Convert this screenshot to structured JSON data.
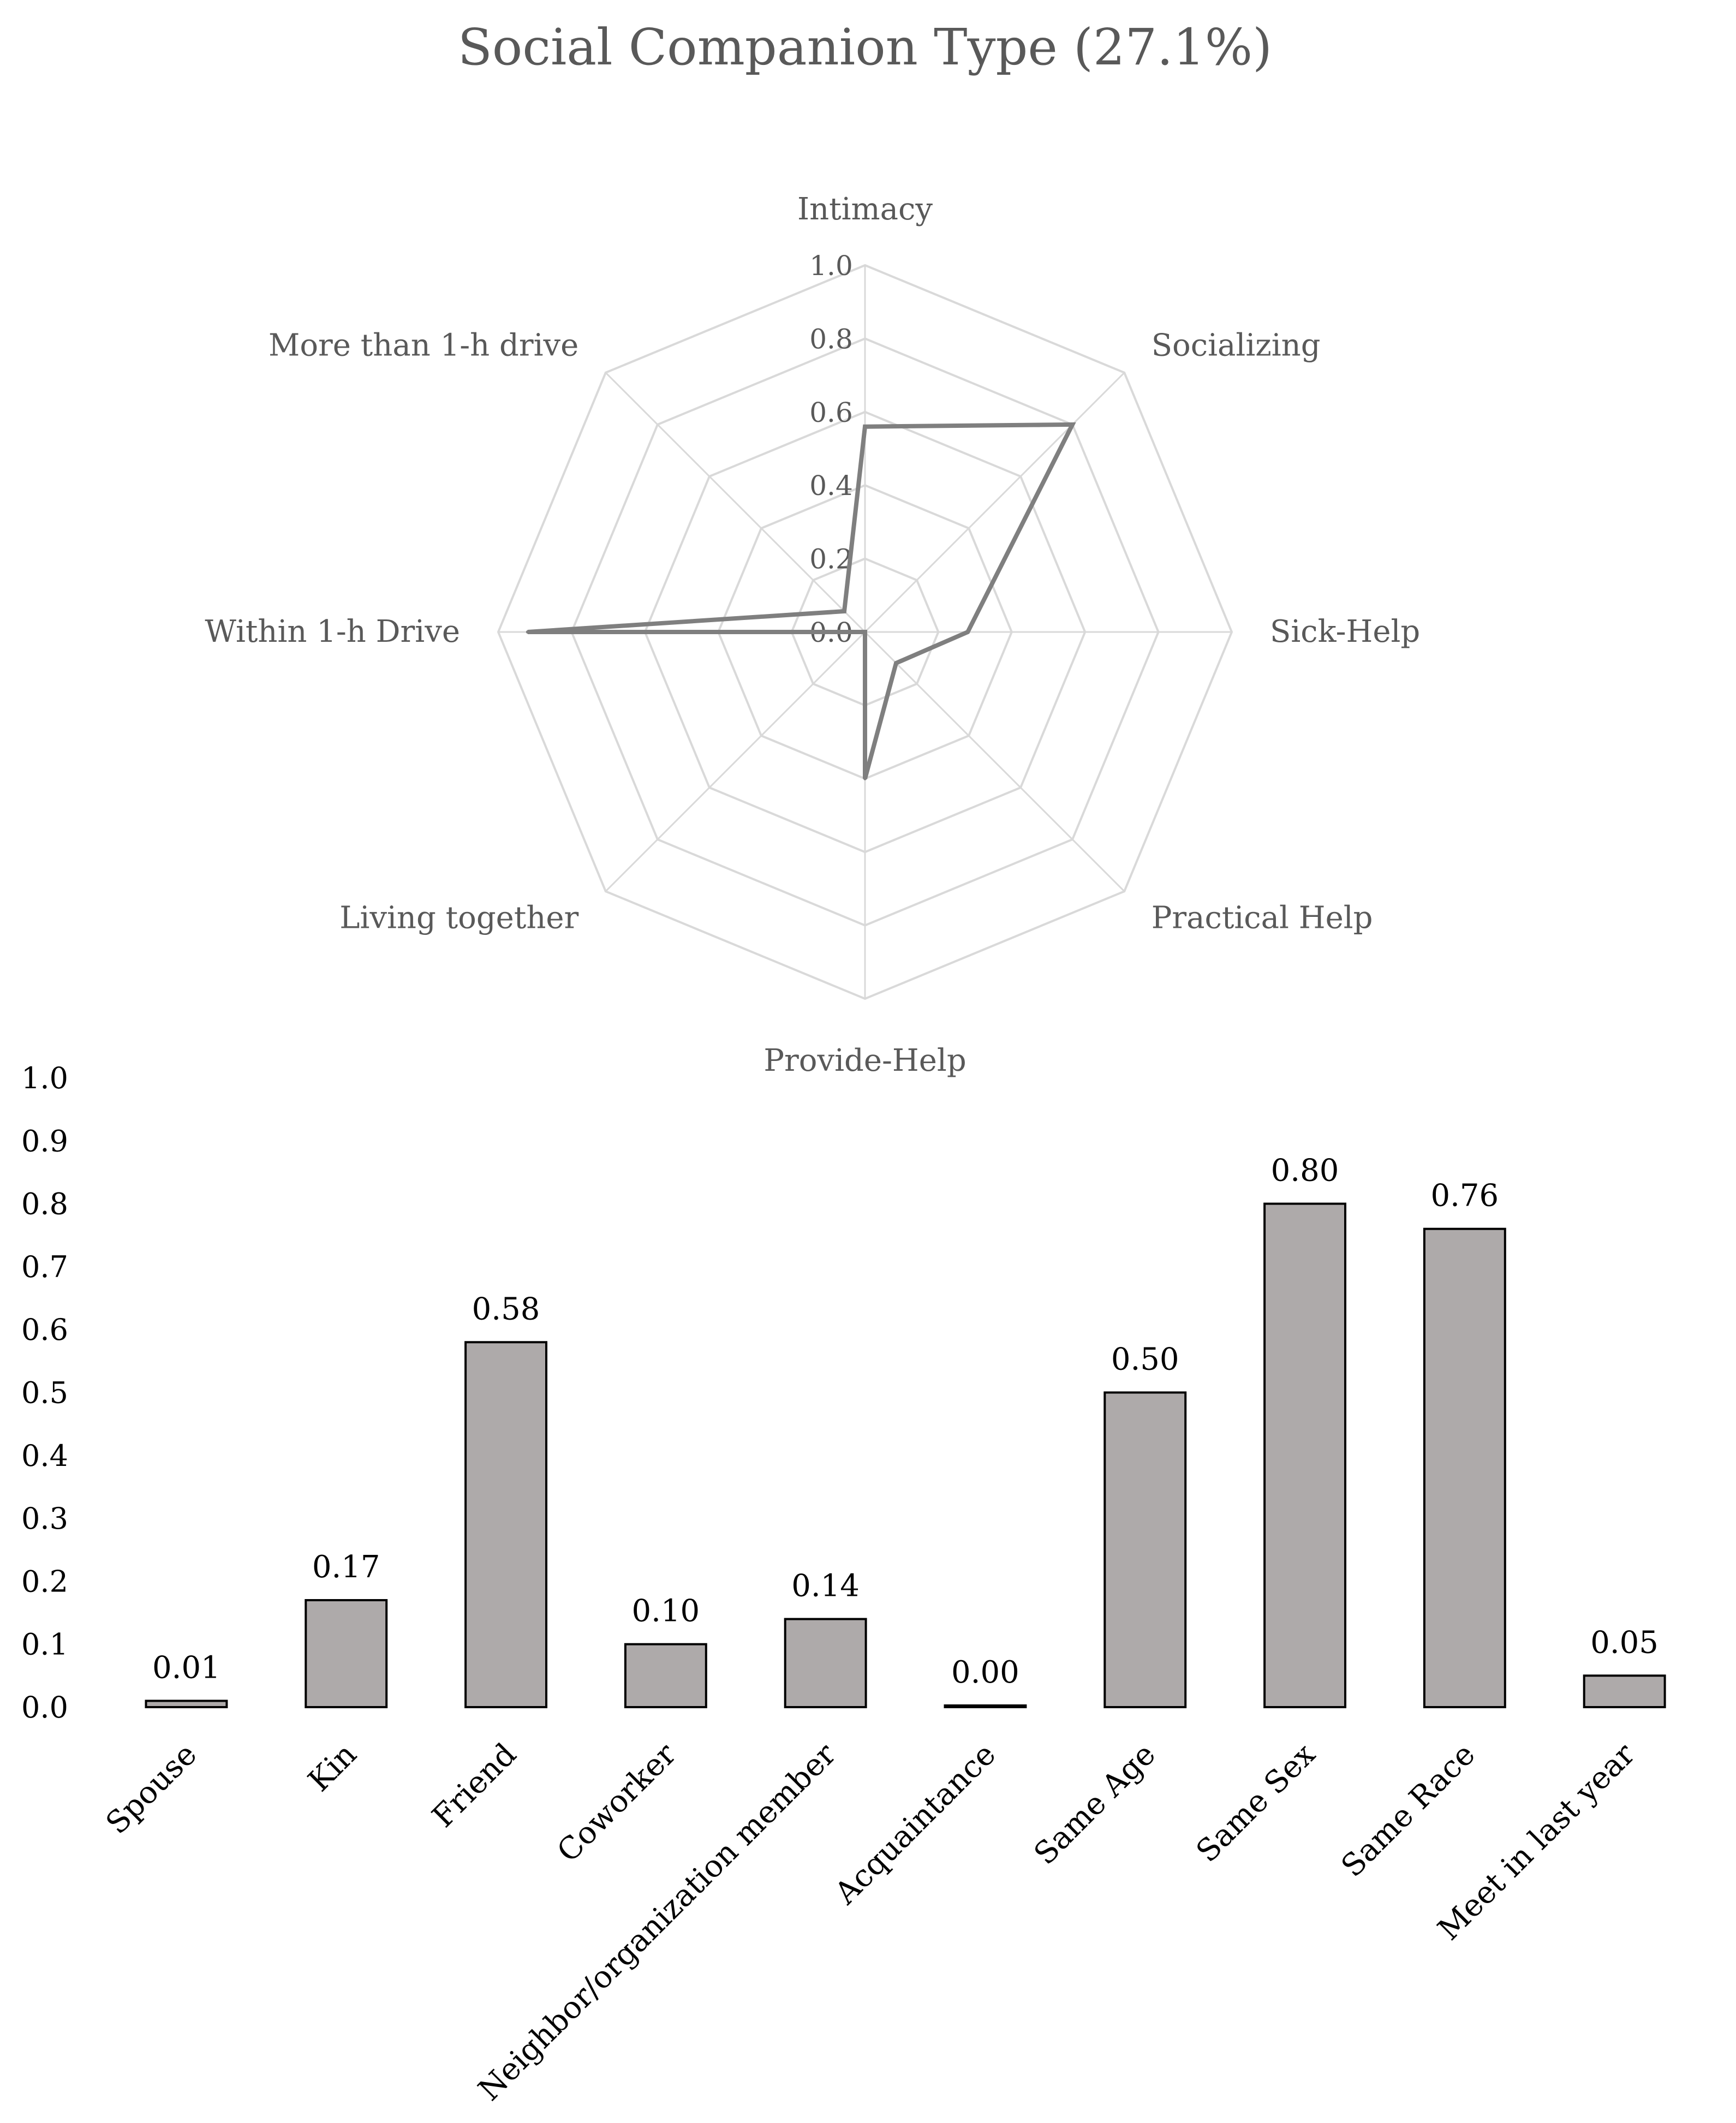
{
  "title": "Social Companion Type (27.1%)",
  "colors": {
    "radar_grid": "#d9d9d9",
    "radar_line": "#7f7f7f",
    "bar_fill": "#aeaaaa",
    "bar_stroke": "#000000",
    "text": "#595959"
  },
  "chart_data": [
    {
      "type": "radar",
      "axes": [
        "Intimacy",
        "Socializing",
        "Sick-Help",
        "Practical Help",
        "Provide-Help",
        "Living together",
        "Within 1-h Drive",
        "More than 1-h drive"
      ],
      "values": [
        0.56,
        0.8,
        0.28,
        0.12,
        0.4,
        0.0,
        0.92,
        0.08
      ],
      "ticks": [
        "0.0",
        "0.2",
        "0.4",
        "0.6",
        "0.8",
        "1.0"
      ],
      "range": [
        0,
        1
      ],
      "grid": true
    },
    {
      "type": "bar",
      "categories": [
        "Spouse",
        "Kin",
        "Friend",
        "Coworker",
        "Neighbor/organization member",
        "Acquaintance",
        "Same Age",
        "Same Sex",
        "Same Race",
        "Meet in last year"
      ],
      "values": [
        0.01,
        0.17,
        0.58,
        0.1,
        0.14,
        0.0,
        0.5,
        0.8,
        0.76,
        0.05
      ],
      "labels": [
        "0.01",
        "0.17",
        "0.58",
        "0.10",
        "0.14",
        "0.00",
        "0.50",
        "0.80",
        "0.76",
        "0.05"
      ],
      "yticks": [
        "0.0",
        "0.1",
        "0.2",
        "0.3",
        "0.4",
        "0.5",
        "0.6",
        "0.7",
        "0.8",
        "0.9",
        "1.0"
      ],
      "ylim": [
        0,
        1
      ],
      "grid": false
    }
  ]
}
